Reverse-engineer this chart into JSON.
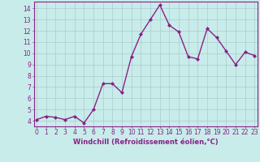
{
  "x": [
    0,
    1,
    2,
    3,
    4,
    5,
    6,
    7,
    8,
    9,
    10,
    11,
    12,
    13,
    14,
    15,
    16,
    17,
    18,
    19,
    20,
    21,
    22,
    23
  ],
  "y": [
    4.1,
    4.4,
    4.3,
    4.1,
    4.4,
    3.8,
    5.0,
    7.3,
    7.3,
    6.5,
    9.7,
    11.7,
    13.0,
    14.3,
    12.5,
    11.9,
    9.7,
    9.5,
    12.2,
    11.4,
    10.2,
    9.0,
    10.1,
    9.8
  ],
  "line_color": "#882288",
  "marker": "D",
  "marker_size": 2.0,
  "line_width": 1.0,
  "xlabel": "Windchill (Refroidissement éolien,°C)",
  "xlabel_fontsize": 6.0,
  "bg_color": "#c8ecea",
  "grid_color": "#aacccc",
  "tick_color": "#882288",
  "spine_color": "#882288",
  "ylim": [
    3.5,
    14.6
  ],
  "yticks": [
    4,
    5,
    6,
    7,
    8,
    9,
    10,
    11,
    12,
    13,
    14
  ],
  "xticks": [
    0,
    1,
    2,
    3,
    4,
    5,
    6,
    7,
    8,
    9,
    10,
    11,
    12,
    13,
    14,
    15,
    16,
    17,
    18,
    19,
    20,
    21,
    22,
    23
  ],
  "tick_fontsize": 5.5,
  "xlim": [
    -0.3,
    23.3
  ]
}
